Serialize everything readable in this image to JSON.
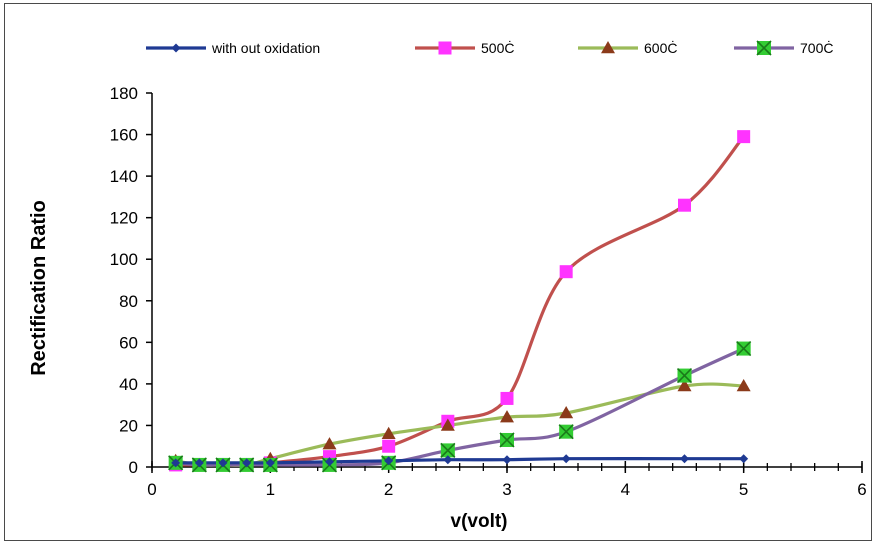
{
  "chart_data": {
    "type": "line",
    "title": "",
    "xlabel": "v(volt)",
    "ylabel": "Rectification Ratio",
    "xlim": [
      0,
      6
    ],
    "ylim": [
      0,
      180
    ],
    "xticks": [
      0,
      1,
      2,
      3,
      4,
      5,
      6
    ],
    "yticks": [
      0,
      20,
      40,
      60,
      80,
      100,
      120,
      140,
      160,
      180
    ],
    "grid": false,
    "legend_position": "top",
    "series": [
      {
        "name": "with out oxidation",
        "color": "#1f3a93",
        "marker": "diamond",
        "smooth": true,
        "x": [
          0.2,
          0.4,
          0.6,
          0.8,
          1.0,
          1.5,
          2.0,
          2.5,
          3.0,
          3.5,
          4.5,
          5.0
        ],
        "y": [
          2,
          2,
          2,
          2,
          2,
          2.5,
          3,
          3.5,
          3.5,
          4,
          4,
          4
        ]
      },
      {
        "name": "500Ċ",
        "color": "#c0504d",
        "marker": "square",
        "marker_color": "#ff33ff",
        "smooth": true,
        "x": [
          0.2,
          0.4,
          0.6,
          0.8,
          1.0,
          1.5,
          2.0,
          2.5,
          3.0,
          3.5,
          4.5,
          5.0
        ],
        "y": [
          1,
          1,
          1,
          1,
          2,
          5,
          10,
          22,
          33,
          94,
          126,
          159
        ]
      },
      {
        "name": "600Ċ",
        "color": "#9bbb59",
        "marker": "triangle",
        "marker_color": "#8b3a1a",
        "smooth": true,
        "x": [
          0.2,
          0.4,
          0.6,
          0.8,
          1.0,
          1.5,
          2.0,
          2.5,
          3.0,
          3.5,
          4.5,
          5.0
        ],
        "y": [
          3,
          1,
          1,
          1,
          4,
          11,
          16,
          20,
          24,
          26,
          39,
          39
        ]
      },
      {
        "name": "700Ċ",
        "color": "#8064a2",
        "marker": "x-square",
        "marker_color": "#33cc33",
        "smooth": true,
        "x": [
          0.2,
          0.4,
          0.6,
          0.8,
          1.0,
          1.5,
          2.0,
          2.5,
          3.0,
          3.5,
          4.5,
          5.0
        ],
        "y": [
          2,
          1,
          1,
          1,
          1,
          1,
          2,
          8,
          13,
          17,
          44,
          57
        ]
      }
    ]
  }
}
